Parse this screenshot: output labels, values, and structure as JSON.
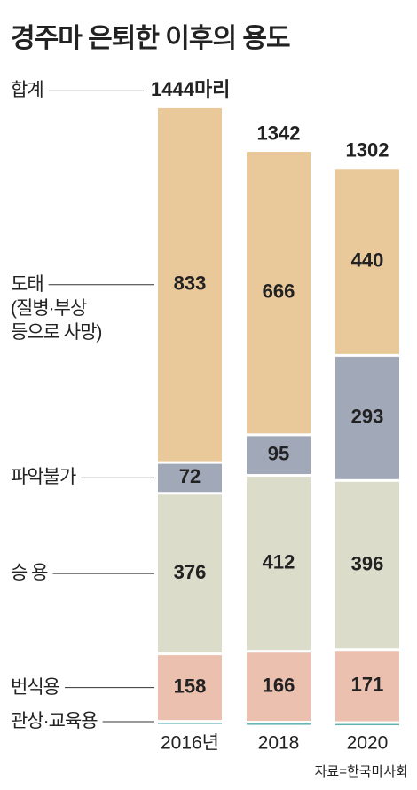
{
  "title": "경주마 은퇴한 이후의 용도",
  "source": "자료=한국마사회",
  "chart_data": {
    "type": "bar",
    "stacked": true,
    "categories": [
      "2016년",
      "2018",
      "2020"
    ],
    "series": [
      {
        "name": "관상·교육용",
        "color": "#5fb3b3",
        "values": [
          5,
          3,
          2
        ],
        "show_values": false
      },
      {
        "name": "번식용",
        "color": "#ebc0ae",
        "values": [
          158,
          166,
          171
        ],
        "show_values": true
      },
      {
        "name": "승 용",
        "color": "#dcdccb",
        "values": [
          376,
          412,
          396
        ],
        "show_values": true
      },
      {
        "name": "파악불가",
        "color": "#a1a8b8",
        "values": [
          72,
          95,
          293
        ],
        "show_values": true
      },
      {
        "name": "도태\n(질병·부상\n등으로 사망)",
        "color": "#e9c999",
        "values": [
          833,
          666,
          440
        ],
        "show_values": true
      }
    ],
    "totals": {
      "name": "합계",
      "values": [
        1444,
        1342,
        1302
      ],
      "value_labels": [
        "1444마리",
        "1342",
        "1302"
      ]
    }
  }
}
